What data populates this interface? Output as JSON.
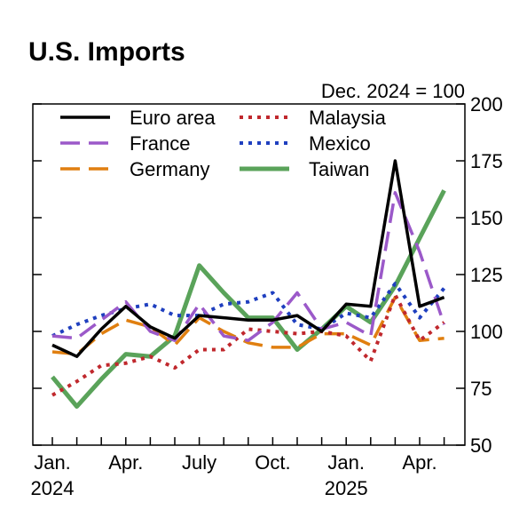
{
  "chart_data": {
    "type": "line",
    "title": "U.S. Imports",
    "subtitle": "Dec. 2024 = 100",
    "x": [
      "2024-01",
      "2024-02",
      "2024-03",
      "2024-04",
      "2024-05",
      "2024-06",
      "2024-07",
      "2024-08",
      "2024-09",
      "2024-10",
      "2024-11",
      "2024-12",
      "2025-01",
      "2025-02",
      "2025-03",
      "2025-04",
      "2025-05"
    ],
    "x_ticks": [
      {
        "x": "2024-01",
        "label": "Jan.",
        "year": "2024"
      },
      {
        "x": "2024-04",
        "label": "Apr.",
        "year": ""
      },
      {
        "x": "2024-07",
        "label": "July",
        "year": ""
      },
      {
        "x": "2024-10",
        "label": "Oct.",
        "year": ""
      },
      {
        "x": "2025-01",
        "label": "Jan.",
        "year": "2025"
      },
      {
        "x": "2025-04",
        "label": "Apr.",
        "year": ""
      }
    ],
    "ylim": [
      50,
      200
    ],
    "y_ticks": [
      50,
      75,
      100,
      125,
      150,
      175,
      200
    ],
    "y_axis_side": "right",
    "legend_placement": "top-left",
    "series": [
      {
        "name": "Euro area",
        "color": "#000000",
        "style": "solid",
        "values": [
          94,
          89,
          101,
          111,
          102,
          97,
          107,
          106,
          105,
          105,
          107,
          100,
          112,
          111,
          175,
          111,
          115
        ]
      },
      {
        "name": "France",
        "color": "#9b59c9",
        "style": "dashed",
        "values": [
          98,
          97,
          105,
          113,
          100,
          96,
          112,
          98,
          96,
          104,
          117,
          101,
          104,
          98,
          161,
          135,
          103
        ]
      },
      {
        "name": "Germany",
        "color": "#e07f10",
        "style": "dashed",
        "values": [
          91,
          90,
          99,
          105,
          102,
          94,
          106,
          100,
          95,
          93,
          93,
          99,
          99,
          94,
          115,
          96,
          97
        ]
      },
      {
        "name": "Malaysia",
        "color": "#c0282d",
        "style": "dotted",
        "values": [
          72,
          78,
          85,
          86,
          89,
          84,
          92,
          92,
          101,
          100,
          99,
          100,
          98,
          87,
          116,
          96,
          104
        ]
      },
      {
        "name": "Mexico",
        "color": "#1f3fbf",
        "style": "dotted",
        "values": [
          98,
          103,
          107,
          110,
          112,
          107,
          107,
          112,
          113,
          117,
          103,
          101,
          108,
          106,
          121,
          106,
          119
        ]
      },
      {
        "name": "Taiwan",
        "color": "#5aa35a",
        "style": "solid",
        "values": [
          80,
          67,
          79,
          90,
          89,
          98,
          129,
          117,
          106,
          106,
          92,
          101,
          111,
          104,
          120,
          141,
          162
        ]
      }
    ]
  }
}
